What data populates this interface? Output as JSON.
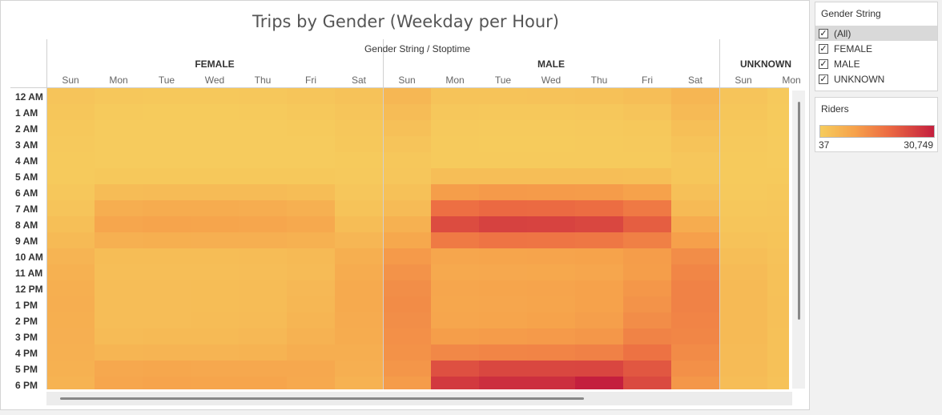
{
  "title": "Trips by Gender (Weekday per Hour)",
  "header_label": "Gender String / Stoptime",
  "filter": {
    "title": "Gender String",
    "items": [
      {
        "label": "(All)",
        "checked": true,
        "selected": true
      },
      {
        "label": "FEMALE",
        "checked": true,
        "selected": false
      },
      {
        "label": "MALE",
        "checked": true,
        "selected": false
      },
      {
        "label": "UNKNOWN",
        "checked": true,
        "selected": false
      }
    ]
  },
  "legend": {
    "title": "Riders",
    "min_label": "37",
    "max_label": "30,749",
    "colors": [
      "#f6cc5d",
      "#f6a24b",
      "#ec6b42",
      "#c41f3e"
    ]
  },
  "chart_data": {
    "type": "heatmap",
    "title": "Trips by Gender (Weekday per Hour)",
    "column_header": "Gender String / Stoptime",
    "groups": [
      "FEMALE",
      "MALE",
      "UNKNOWN"
    ],
    "days": [
      "Sun",
      "Mon",
      "Tue",
      "Wed",
      "Thu",
      "Fri",
      "Sat"
    ],
    "visible_unknown_days": [
      "Sun",
      "Mon"
    ],
    "hours": [
      "12 AM",
      "1 AM",
      "2 AM",
      "3 AM",
      "4 AM",
      "5 AM",
      "6 AM",
      "7 AM",
      "8 AM",
      "9 AM",
      "10 AM",
      "11 AM",
      "12 PM",
      "1 PM",
      "2 PM",
      "3 PM",
      "4 PM",
      "5 PM",
      "6 PM"
    ],
    "color_range": [
      37,
      30749
    ],
    "values": {
      "FEMALE": [
        [
          2000,
          1200,
          1000,
          1000,
          1300,
          1800,
          2400
        ],
        [
          1500,
          500,
          400,
          400,
          500,
          900,
          1800
        ],
        [
          1100,
          300,
          300,
          300,
          300,
          500,
          1200
        ],
        [
          800,
          200,
          200,
          200,
          200,
          300,
          900
        ],
        [
          500,
          200,
          200,
          200,
          200,
          200,
          600
        ],
        [
          600,
          1100,
          1100,
          1100,
          1100,
          1000,
          800
        ],
        [
          1200,
          4000,
          4200,
          4200,
          4200,
          3800,
          1400
        ],
        [
          2000,
          7300,
          7800,
          7800,
          7600,
          6800,
          2200
        ],
        [
          3200,
          9200,
          9700,
          9600,
          9400,
          8500,
          3800
        ],
        [
          4400,
          6800,
          7200,
          7100,
          7000,
          6700,
          5300
        ],
        [
          6000,
          3800,
          3800,
          3800,
          4000,
          4400,
          7200
        ],
        [
          6700,
          3400,
          3400,
          3500,
          3700,
          4300,
          7900
        ],
        [
          7200,
          3600,
          3700,
          3800,
          4000,
          4800,
          8300
        ],
        [
          7300,
          3600,
          3600,
          3800,
          4000,
          5100,
          8300
        ],
        [
          7200,
          3700,
          3700,
          3900,
          4200,
          5700,
          8100
        ],
        [
          7000,
          4300,
          4400,
          4500,
          4800,
          6300,
          7800
        ],
        [
          6900,
          5700,
          5900,
          5900,
          6200,
          7300,
          7400
        ],
        [
          6600,
          8700,
          9000,
          8800,
          8800,
          8700,
          7000
        ],
        [
          6100,
          9300,
          9700,
          9500,
          9500,
          8600,
          6300
        ]
      ],
      "MALE": [
        [
          5100,
          2300,
          2300,
          2400,
          2600,
          3500,
          5500
        ],
        [
          4000,
          1200,
          1100,
          1100,
          1300,
          1900,
          4400
        ],
        [
          2900,
          700,
          600,
          600,
          700,
          1100,
          3200
        ],
        [
          2000,
          500,
          400,
          400,
          500,
          700,
          2200
        ],
        [
          1300,
          600,
          500,
          500,
          600,
          600,
          1400
        ],
        [
          1400,
          3400,
          3500,
          3500,
          3400,
          3200,
          1600
        ],
        [
          2700,
          11000,
          11700,
          11600,
          11400,
          10300,
          2900
        ],
        [
          4300,
          19700,
          20800,
          20700,
          20100,
          17900,
          4500
        ],
        [
          6600,
          24700,
          26100,
          25900,
          25300,
          22200,
          7800
        ],
        [
          8900,
          17700,
          18800,
          18600,
          18200,
          16600,
          10600
        ],
        [
          11800,
          9400,
          9600,
          9700,
          10100,
          11200,
          14200
        ],
        [
          13000,
          8500,
          8700,
          8900,
          9300,
          11000,
          15500
        ],
        [
          14000,
          9200,
          9500,
          9800,
          10300,
          12400,
          16200
        ],
        [
          14300,
          9000,
          9300,
          9600,
          10200,
          13000,
          16300
        ],
        [
          14000,
          9300,
          9600,
          10000,
          10800,
          14200,
          15900
        ],
        [
          13600,
          11000,
          11300,
          11700,
          12400,
          16100,
          15400
        ],
        [
          13200,
          15100,
          15700,
          15900,
          16500,
          19200,
          14600
        ],
        [
          12600,
          24200,
          25400,
          25300,
          25500,
          23200,
          13700
        ],
        [
          11400,
          27200,
          28600,
          28600,
          30749,
          25000,
          12300
        ]
      ],
      "UNKNOWN": [
        [
          1900,
          700
        ],
        [
          1500,
          500
        ],
        [
          1100,
          400
        ],
        [
          800,
          300
        ],
        [
          600,
          300
        ],
        [
          600,
          500
        ],
        [
          800,
          900
        ],
        [
          1200,
          1400
        ],
        [
          1700,
          1800
        ],
        [
          2500,
          2100
        ],
        [
          3500,
          2400
        ],
        [
          4100,
          2600
        ],
        [
          4400,
          2800
        ],
        [
          4500,
          2900
        ],
        [
          4500,
          2900
        ],
        [
          4400,
          2800
        ],
        [
          4300,
          2800
        ],
        [
          4100,
          2700
        ],
        [
          3700,
          2500
        ]
      ]
    }
  }
}
